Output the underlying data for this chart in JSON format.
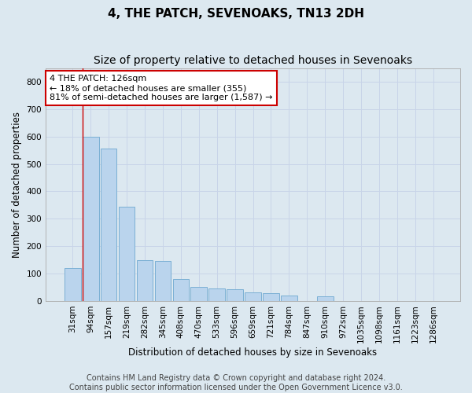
{
  "title": "4, THE PATCH, SEVENOAKS, TN13 2DH",
  "subtitle": "Size of property relative to detached houses in Sevenoaks",
  "xlabel": "Distribution of detached houses by size in Sevenoaks",
  "ylabel": "Number of detached properties",
  "footer_line1": "Contains HM Land Registry data © Crown copyright and database right 2024.",
  "footer_line2": "Contains public sector information licensed under the Open Government Licence v3.0.",
  "categories": [
    "31sqm",
    "94sqm",
    "157sqm",
    "219sqm",
    "282sqm",
    "345sqm",
    "408sqm",
    "470sqm",
    "533sqm",
    "596sqm",
    "659sqm",
    "721sqm",
    "784sqm",
    "847sqm",
    "910sqm",
    "972sqm",
    "1035sqm",
    "1098sqm",
    "1161sqm",
    "1223sqm",
    "1286sqm"
  ],
  "values": [
    120,
    600,
    555,
    345,
    150,
    145,
    80,
    52,
    45,
    42,
    32,
    28,
    20,
    0,
    18,
    0,
    0,
    0,
    0,
    0,
    0
  ],
  "bar_color": "#bad4ed",
  "bar_edge_color": "#7aafd4",
  "bar_linewidth": 0.7,
  "grid_color": "#c8d4e8",
  "background_color": "#dce8f0",
  "annotation_text": "4 THE PATCH: 126sqm\n← 18% of detached houses are smaller (355)\n81% of semi-detached houses are larger (1,587) →",
  "annotation_box_color": "white",
  "annotation_box_edge_color": "#cc0000",
  "red_line_bar_index": 1,
  "red_line_color": "#cc0000",
  "red_line_linewidth": 1.0,
  "ylim": [
    0,
    850
  ],
  "yticks": [
    0,
    100,
    200,
    300,
    400,
    500,
    600,
    700,
    800
  ],
  "title_fontsize": 11,
  "subtitle_fontsize": 10,
  "axis_label_fontsize": 8.5,
  "tick_fontsize": 7.5,
  "annotation_fontsize": 8,
  "footer_fontsize": 7
}
